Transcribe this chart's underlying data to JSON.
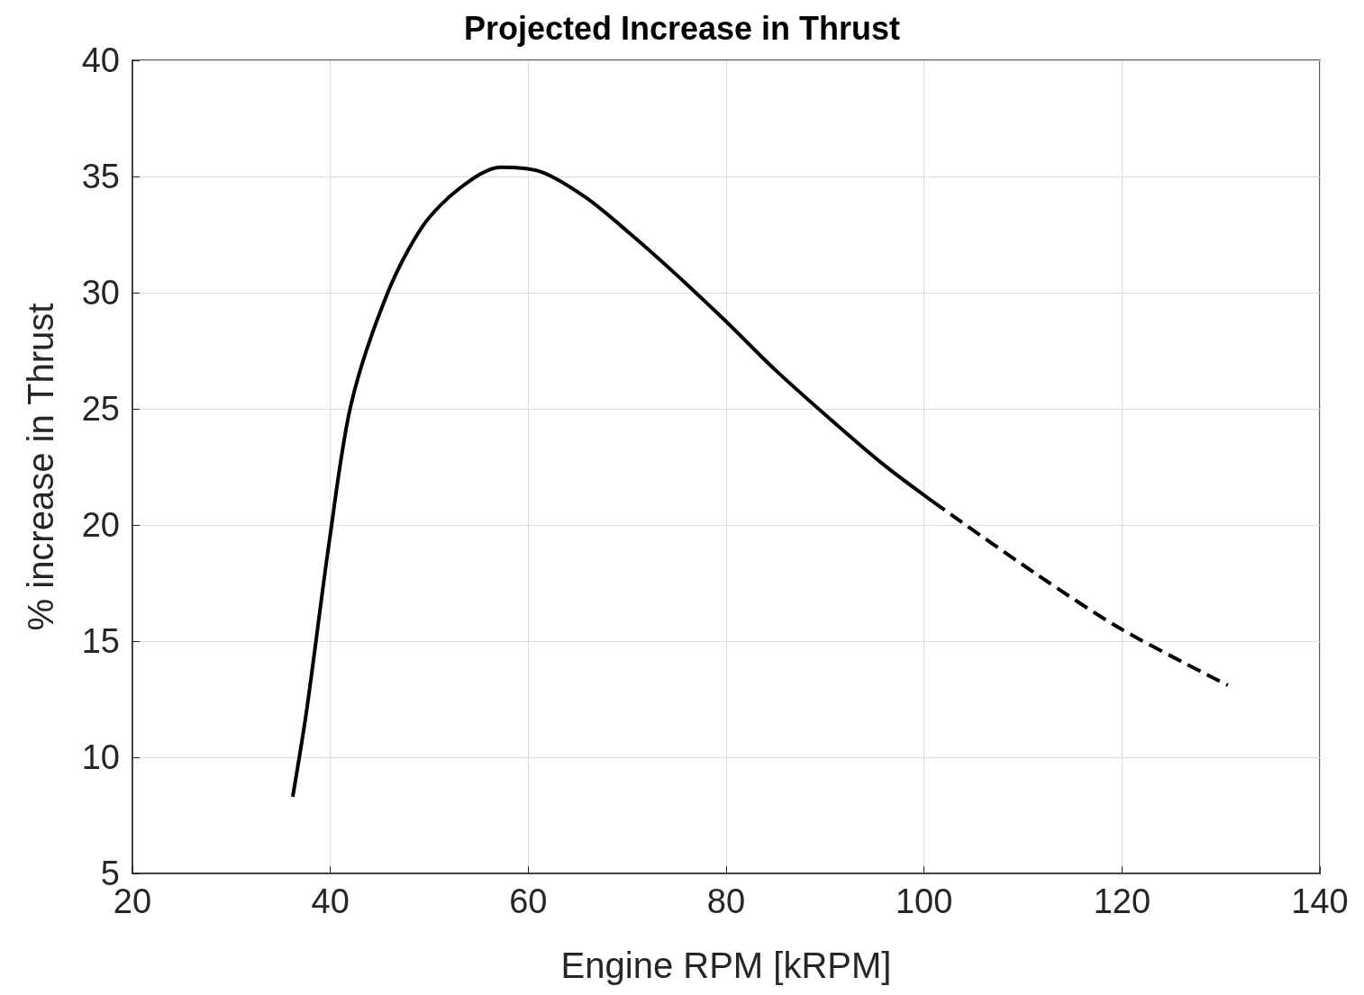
{
  "chart_data": {
    "type": "line",
    "title": "Projected Increase in Thrust",
    "xlabel": "Engine RPM [kRPM]",
    "ylabel": "% increase in Thrust",
    "xlim": [
      20,
      140
    ],
    "xticks": [
      20,
      40,
      60,
      80,
      100,
      120,
      140
    ],
    "ylim": [
      5,
      40
    ],
    "yticks": [
      5,
      10,
      15,
      20,
      25,
      30,
      35,
      40
    ],
    "grid": true,
    "marker": "none",
    "series": [
      {
        "color": "#000000",
        "line_style": "solid",
        "x": [
          36.2,
          37.6,
          39.9,
          42.1,
          45.8,
          49.4,
          53.1,
          57.2,
          61.3,
          65.8,
          70.4,
          74.9,
          79.9,
          84.9,
          90.4,
          95.9,
          100.9
        ],
        "values": [
          8.3,
          12.0,
          19.3,
          25.2,
          30.0,
          32.9,
          34.5,
          35.4,
          35.2,
          34.1,
          32.5,
          30.8,
          28.8,
          26.7,
          24.6,
          22.6,
          21.0
        ]
      },
      {
        "color": "#000000",
        "line_style": "dashed",
        "x": [
          100.9,
          111.3,
          120,
          130.7
        ],
        "values": [
          21.0,
          17.9,
          15.5,
          13.1
        ]
      }
    ]
  }
}
